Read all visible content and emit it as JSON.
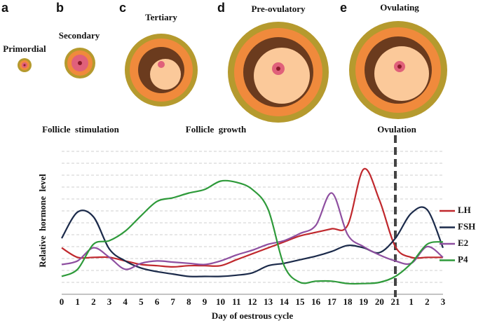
{
  "panels": [
    {
      "letter": "a",
      "label": "Primordial"
    },
    {
      "letter": "b",
      "label": "Secondary"
    },
    {
      "letter": "c",
      "label": "Tertiary"
    },
    {
      "letter": "d",
      "label": "Pre-ovulatory"
    },
    {
      "letter": "e",
      "label": "Ovulating"
    }
  ],
  "phases": [
    "Follicle  stimulation",
    "Follicle  growth",
    "Ovulation"
  ],
  "chart_data": {
    "type": "line",
    "ylabel": "Relative  hormone  level",
    "xlabel": "Day of oestrous cycle",
    "categories": [
      "0",
      "1",
      "2",
      "3",
      "4",
      "5",
      "6",
      "7",
      "8",
      "9",
      "10",
      "11",
      "12",
      "13",
      "14",
      "15",
      "16",
      "17",
      "18",
      "19",
      "20",
      "21",
      "1",
      "2",
      "3"
    ],
    "ylim": [
      0,
      12
    ],
    "yticks": [
      1,
      2,
      3,
      4,
      5,
      6,
      7,
      8,
      9,
      10,
      11,
      12
    ],
    "ytick_labels": false,
    "grid": true,
    "ovulation_index": 21,
    "legend": "right",
    "series": [
      {
        "name": "LH",
        "color": "#c0282d",
        "values": [
          3.9,
          3.1,
          3.1,
          3.1,
          2.8,
          2.5,
          2.4,
          2.3,
          2.4,
          2.4,
          2.4,
          2.9,
          3.4,
          3.9,
          4.4,
          4.9,
          5.2,
          5.5,
          5.8,
          10.5,
          7.9,
          4.0,
          3.1,
          3.1,
          3.1
        ]
      },
      {
        "name": "FSH",
        "color": "#1b2a4a",
        "values": [
          4.7,
          6.9,
          6.5,
          3.8,
          2.8,
          2.2,
          1.9,
          1.7,
          1.5,
          1.5,
          1.5,
          1.6,
          1.8,
          2.4,
          2.6,
          2.9,
          3.2,
          3.6,
          4.1,
          3.9,
          3.5,
          4.7,
          6.8,
          7.1,
          3.9
        ]
      },
      {
        "name": "E2",
        "color": "#8e4fa0",
        "values": [
          2.5,
          2.8,
          3.9,
          3.1,
          2.1,
          2.6,
          2.8,
          2.7,
          2.6,
          2.5,
          2.8,
          3.3,
          3.7,
          4.2,
          4.5,
          5.1,
          5.8,
          8.5,
          5.0,
          4.0,
          3.3,
          2.8,
          2.6,
          4.0,
          3.1
        ]
      },
      {
        "name": "P4",
        "color": "#2e9a3a",
        "values": [
          1.5,
          2.1,
          4.2,
          4.5,
          5.3,
          6.6,
          7.8,
          8.1,
          8.5,
          8.8,
          9.5,
          9.4,
          8.8,
          7.1,
          2.4,
          1.0,
          1.1,
          1.1,
          0.9,
          0.9,
          1.0,
          1.5,
          2.6,
          4.2,
          4.4
        ]
      }
    ]
  }
}
